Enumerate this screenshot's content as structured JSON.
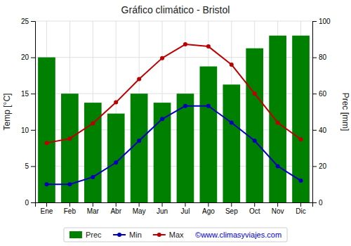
{
  "chart_data": {
    "type": "line",
    "title": "Gráfico climático - Bristol",
    "categories": [
      "Ene",
      "Feb",
      "Mar",
      "Abr",
      "May",
      "Jun",
      "Jul",
      "Ago",
      "Sep",
      "Oct",
      "Nov",
      "Dic"
    ],
    "ylabel": "Temp [°C]",
    "y2label": "Prec [mm]",
    "ylim": [
      0,
      25
    ],
    "yticks": [
      0,
      5,
      10,
      15,
      20,
      25
    ],
    "y2lim": [
      0,
      100
    ],
    "y2ticks": [
      0,
      20,
      40,
      60,
      80,
      100
    ],
    "grid": true,
    "legend": "bottom",
    "series": [
      {
        "name": "Prec",
        "type": "bar",
        "axis": "y2",
        "color": "#008000",
        "values": [
          80,
          60,
          55,
          49,
          60,
          55,
          60,
          75,
          65,
          85,
          92,
          92
        ]
      },
      {
        "name": "Min",
        "type": "line",
        "marker": "circle",
        "color": "#0000bb",
        "values": [
          2.5,
          2.5,
          3.5,
          5.5,
          8.5,
          11.5,
          13.3,
          13.3,
          11.0,
          8.5,
          5.0,
          3.0
        ]
      },
      {
        "name": "Max",
        "type": "line",
        "marker": "circle",
        "color": "#bb0000",
        "values": [
          8.2,
          8.8,
          10.9,
          13.8,
          17.0,
          19.9,
          21.8,
          21.5,
          19.0,
          15.0,
          11.0,
          8.7
        ]
      }
    ],
    "annotations": [
      {
        "text": "©www.climasyviajes.com",
        "color": "#0000cc"
      }
    ]
  }
}
